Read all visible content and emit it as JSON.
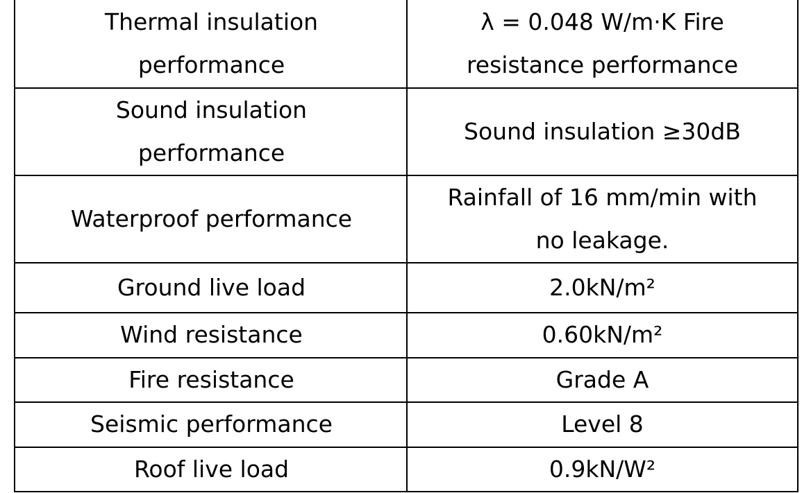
{
  "table": {
    "rows": [
      [
        "Thermal insulation performance",
        "λ = 0.048 W/m·K Fire resistance performance"
      ],
      [
        "Sound insulation performance",
        "Sound insulation ≥30dB"
      ],
      [
        "Waterproof performance",
        "Rainfall of 16 mm/min with no leakage."
      ],
      [
        "Ground live load",
        "2.0kN/m²"
      ],
      [
        "Wind resistance",
        "0.60kN/m²"
      ],
      [
        "Fire resistance",
        "Grade A"
      ],
      [
        "Seismic performance",
        "Level 8"
      ],
      [
        "Roof live load",
        "0.9kN/W²"
      ]
    ]
  }
}
